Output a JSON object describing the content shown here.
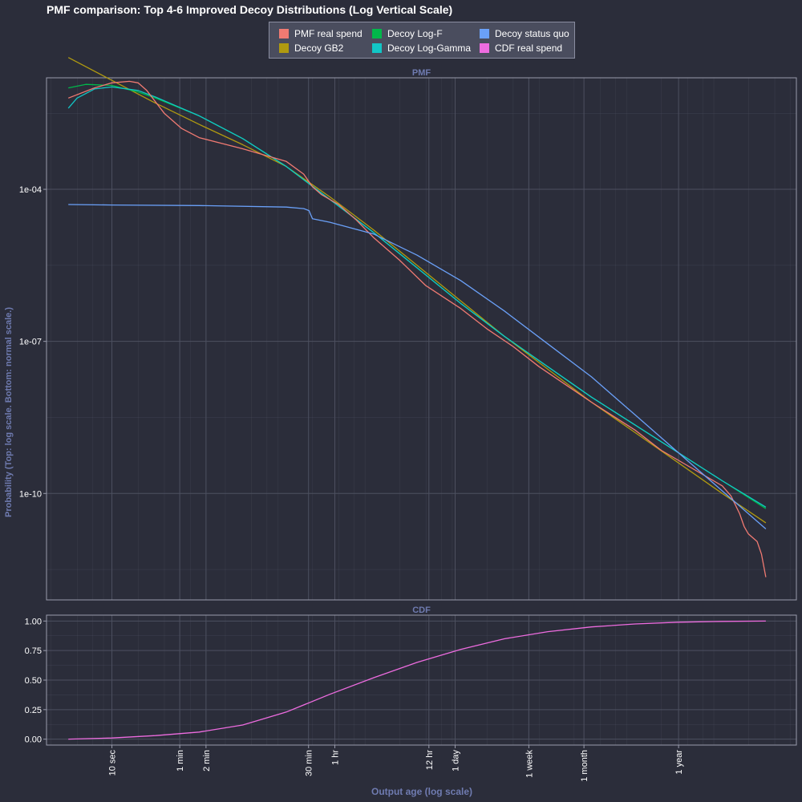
{
  "title": "PMF comparison: Top 4-6 Improved Decoy Distributions (Log Vertical Scale)",
  "ylabel": "Probability (Top: log scale. Bottom: normal scale.)",
  "xlabel": "Output age (log scale)",
  "colors": {
    "background": "#2b2d3a",
    "grid": "#4d5060",
    "pmf_real": "#f07a72",
    "gb2": "#b09a10",
    "logf": "#00b84a",
    "loggamma": "#12c6c6",
    "status_quo": "#6aa0f8",
    "cdf_real": "#ee6ce0"
  },
  "legend": {
    "placement": "top-center",
    "items": [
      {
        "label": "PMF real spend",
        "color": "#f07a72"
      },
      {
        "label": "Decoy GB2",
        "color": "#b09a10"
      },
      {
        "label": "Decoy Log-F",
        "color": "#00b84a"
      },
      {
        "label": "Decoy Log-Gamma",
        "color": "#12c6c6"
      },
      {
        "label": "Decoy status quo",
        "color": "#6aa0f8"
      },
      {
        "label": "CDF real spend",
        "color": "#ee6ce0"
      }
    ]
  },
  "chart_data": [
    {
      "type": "line",
      "panel": "PMF",
      "title": "PMF",
      "y_scale": "log",
      "x_scale": "log",
      "grid": true,
      "xlabel": "Output age (log scale)",
      "ylabel": "Probability (Top: log scale. Bottom: normal scale.)",
      "y_ticks": [
        {
          "label": "1e-04",
          "log10": -4
        },
        {
          "label": "1e-07",
          "log10": -7
        },
        {
          "label": "1e-10",
          "log10": -10
        }
      ],
      "ylim_log10": [
        -12.1,
        -1.8
      ],
      "x_ticks": [
        {
          "label": "10 sec",
          "seconds": 10
        },
        {
          "label": "1 min",
          "seconds": 60
        },
        {
          "label": "2 min",
          "seconds": 120
        },
        {
          "label": "30 min",
          "seconds": 1800
        },
        {
          "label": "1 hr",
          "seconds": 3600
        },
        {
          "label": "12 hr",
          "seconds": 43200
        },
        {
          "label": "1 day",
          "seconds": 86400
        },
        {
          "label": "1 week",
          "seconds": 604800
        },
        {
          "label": "1 month",
          "seconds": 2592000
        },
        {
          "label": "1 year",
          "seconds": 31536000
        }
      ],
      "x_data_label": "log10 output age in seconds",
      "xlim": [
        0.25,
        8.85
      ],
      "series": [
        {
          "name": "PMF real spend",
          "color": "#f07a72",
          "x": [
            0.5,
            0.8,
            1.0,
            1.2,
            1.3,
            1.4,
            1.6,
            1.8,
            2.0,
            2.5,
            3.0,
            3.2,
            3.3,
            3.4,
            3.6,
            3.8,
            4.0,
            4.3,
            4.6,
            5.0,
            5.3,
            5.6,
            5.9,
            6.2,
            6.5,
            7.0,
            7.3,
            7.6,
            7.9,
            8.0,
            8.1,
            8.2,
            8.25,
            8.3,
            8.4,
            8.45,
            8.5
          ],
          "y": [
            -2.2,
            -2.0,
            -1.9,
            -1.87,
            -1.9,
            -2.05,
            -2.5,
            -2.8,
            -2.98,
            -3.2,
            -3.45,
            -3.7,
            -3.95,
            -4.1,
            -4.3,
            -4.6,
            -4.95,
            -5.4,
            -5.9,
            -6.35,
            -6.75,
            -7.1,
            -7.5,
            -7.85,
            -8.2,
            -8.75,
            -9.15,
            -9.45,
            -9.75,
            -9.85,
            -10.05,
            -10.4,
            -10.65,
            -10.8,
            -10.95,
            -11.2,
            -11.65
          ]
        },
        {
          "name": "Decoy GB2",
          "color": "#b09a10",
          "x": [
            0.5,
            1.0,
            1.5,
            2.0,
            2.5,
            3.0,
            3.5,
            4.0,
            4.5,
            5.0,
            5.5,
            6.0,
            6.5,
            7.0,
            7.5,
            8.0,
            8.5
          ],
          "y": [
            -1.4,
            -1.85,
            -2.3,
            -2.72,
            -3.12,
            -3.55,
            -4.15,
            -4.8,
            -5.5,
            -6.2,
            -6.9,
            -7.55,
            -8.2,
            -8.8,
            -9.4,
            -10.0,
            -10.58
          ]
        },
        {
          "name": "Decoy Log-F",
          "color": "#00b84a",
          "x": [
            0.5,
            0.7,
            1.0,
            1.3,
            1.5,
            2.0,
            2.5,
            3.0,
            3.5,
            4.0,
            4.5,
            5.0,
            5.5,
            6.0,
            6.5,
            7.0,
            7.5,
            8.0,
            8.5
          ],
          "y": [
            -2.0,
            -1.93,
            -1.95,
            -2.08,
            -2.2,
            -2.55,
            -3.0,
            -3.55,
            -4.2,
            -4.85,
            -5.55,
            -6.25,
            -6.9,
            -7.5,
            -8.1,
            -8.65,
            -9.2,
            -9.75,
            -10.3
          ]
        },
        {
          "name": "Decoy Log-Gamma",
          "color": "#12c6c6",
          "x": [
            0.5,
            0.6,
            0.8,
            1.0,
            1.3,
            1.5,
            2.0,
            2.5,
            3.0,
            3.5,
            4.0,
            4.5,
            5.0,
            5.5,
            6.0,
            6.5,
            7.0,
            7.5,
            8.0,
            8.5
          ],
          "y": [
            -2.4,
            -2.2,
            -2.02,
            -1.98,
            -2.05,
            -2.18,
            -2.55,
            -3.0,
            -3.55,
            -4.2,
            -4.85,
            -5.55,
            -6.25,
            -6.9,
            -7.5,
            -8.1,
            -8.65,
            -9.2,
            -9.75,
            -10.27
          ]
        },
        {
          "name": "Decoy status quo",
          "color": "#6aa0f8",
          "x": [
            0.5,
            1.0,
            2.0,
            3.0,
            3.2,
            3.26,
            3.3,
            3.5,
            4.0,
            4.5,
            5.0,
            5.5,
            6.0,
            6.5,
            7.0,
            7.5,
            8.0,
            8.5
          ],
          "y": [
            -4.3,
            -4.31,
            -4.32,
            -4.35,
            -4.38,
            -4.42,
            -4.58,
            -4.65,
            -4.88,
            -5.3,
            -5.8,
            -6.4,
            -7.05,
            -7.7,
            -8.45,
            -9.2,
            -9.95,
            -10.7
          ]
        }
      ]
    },
    {
      "type": "line",
      "panel": "CDF",
      "title": "CDF",
      "y_scale": "linear",
      "x_scale": "log",
      "grid": true,
      "ylim": [
        -0.05,
        1.05
      ],
      "y_ticks": [
        0.0,
        0.25,
        0.5,
        0.75,
        1.0
      ],
      "y_tick_labels": [
        "0.00",
        "0.25",
        "0.50",
        "0.75",
        "1.00"
      ],
      "xlim": [
        0.25,
        8.85
      ],
      "series": [
        {
          "name": "CDF real spend",
          "color": "#ee6ce0",
          "x": [
            0.5,
            1.0,
            1.5,
            2.0,
            2.5,
            3.0,
            3.5,
            4.0,
            4.5,
            5.0,
            5.5,
            6.0,
            6.5,
            7.0,
            7.5,
            8.0,
            8.5
          ],
          "y": [
            0.0,
            0.01,
            0.03,
            0.06,
            0.12,
            0.23,
            0.38,
            0.52,
            0.65,
            0.76,
            0.85,
            0.91,
            0.95,
            0.975,
            0.99,
            0.997,
            1.0
          ]
        }
      ]
    }
  ]
}
